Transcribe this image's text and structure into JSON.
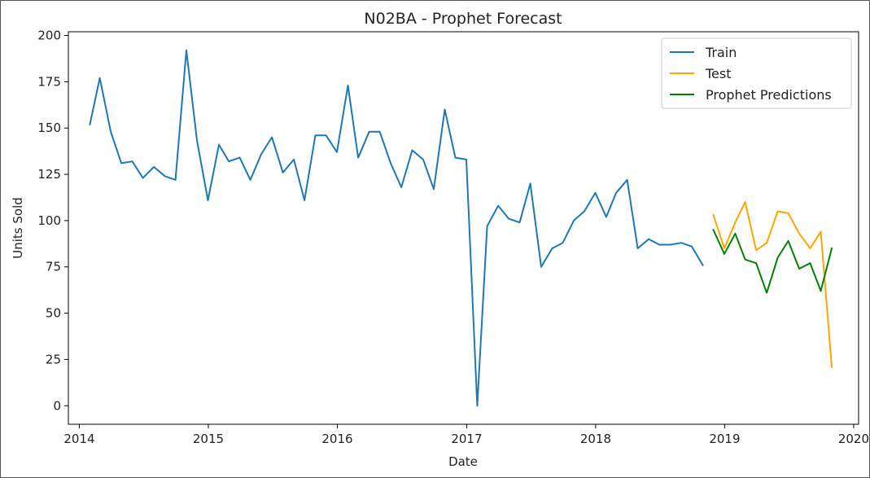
{
  "chart_data": {
    "type": "line",
    "title": "N02BA - Prophet Forecast",
    "xlabel": "Date",
    "ylabel": "Units Sold",
    "xlim": [
      "2013-12-01",
      "2020-01-15"
    ],
    "ylim": [
      -10,
      202
    ],
    "x_ticks": [
      "2014",
      "2015",
      "2016",
      "2017",
      "2018",
      "2019",
      "2020"
    ],
    "y_ticks": [
      0,
      25,
      50,
      75,
      100,
      125,
      150,
      175,
      200
    ],
    "grid": false,
    "legend_position": "top-right",
    "series": [
      {
        "name": "Train",
        "color": "#1f77b4",
        "x": [
          "2014-01-31",
          "2014-02-28",
          "2014-03-31",
          "2014-04-30",
          "2014-05-31",
          "2014-06-30",
          "2014-07-31",
          "2014-08-31",
          "2014-09-30",
          "2014-10-31",
          "2014-11-30",
          "2014-12-31",
          "2015-01-31",
          "2015-02-28",
          "2015-03-31",
          "2015-04-30",
          "2015-05-31",
          "2015-06-30",
          "2015-07-31",
          "2015-08-31",
          "2015-09-30",
          "2015-10-31",
          "2015-11-30",
          "2015-12-31",
          "2016-01-31",
          "2016-02-29",
          "2016-03-31",
          "2016-04-30",
          "2016-05-31",
          "2016-06-30",
          "2016-07-31",
          "2016-08-31",
          "2016-09-30",
          "2016-10-31",
          "2016-11-30",
          "2016-12-31",
          "2017-01-31",
          "2017-02-28",
          "2017-03-31",
          "2017-04-30",
          "2017-05-31",
          "2017-06-30",
          "2017-07-31",
          "2017-08-31",
          "2017-09-30",
          "2017-10-31",
          "2017-11-30",
          "2017-12-31",
          "2018-01-31",
          "2018-02-28",
          "2018-03-31",
          "2018-04-30",
          "2018-05-31",
          "2018-06-30",
          "2018-07-31",
          "2018-08-31",
          "2018-09-30",
          "2018-10-31"
        ],
        "values": [
          152,
          177,
          148,
          131,
          132,
          123,
          129,
          124,
          122,
          192,
          143,
          111,
          141,
          132,
          134,
          122,
          136,
          145,
          126,
          133,
          111,
          146,
          146,
          137,
          173,
          134,
          148,
          148,
          131,
          118,
          138,
          133,
          117,
          160,
          134,
          133,
          0,
          97,
          108,
          101,
          99,
          120,
          75,
          85,
          88,
          100,
          105,
          115,
          102,
          115,
          122,
          85,
          90,
          87,
          87,
          88,
          86,
          76
        ]
      },
      {
        "name": "Test",
        "color": "#ffa500",
        "x": [
          "2018-11-30",
          "2018-12-31",
          "2019-01-31",
          "2019-02-28",
          "2019-03-31",
          "2019-04-30",
          "2019-05-31",
          "2019-06-30",
          "2019-07-31",
          "2019-08-31",
          "2019-09-30",
          "2019-10-31"
        ],
        "values": [
          103,
          85,
          99,
          110,
          84,
          88,
          105,
          104,
          93,
          85,
          94,
          21
        ]
      },
      {
        "name": "Prophet Predictions",
        "color": "#008000",
        "x": [
          "2018-11-30",
          "2018-12-31",
          "2019-01-31",
          "2019-02-28",
          "2019-03-31",
          "2019-04-30",
          "2019-05-31",
          "2019-06-30",
          "2019-07-31",
          "2019-08-31",
          "2019-09-30",
          "2019-10-31"
        ],
        "values": [
          95,
          82,
          93,
          79,
          77,
          61,
          80,
          89,
          74,
          77,
          62,
          85
        ]
      }
    ]
  }
}
